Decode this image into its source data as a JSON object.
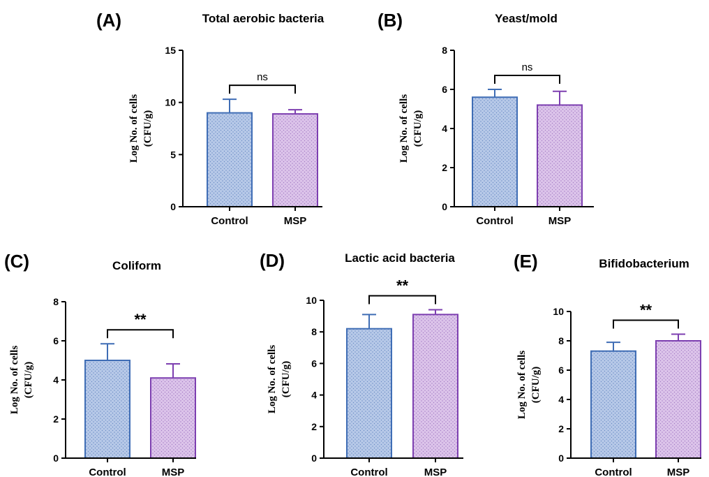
{
  "colors": {
    "control_fill": "#b7c9e8",
    "control_edge": "#3f6db5",
    "msp_fill": "#dcc4ea",
    "msp_edge": "#7d3fb0",
    "axis": "#000000"
  },
  "chart_data": [
    {
      "type": "bar",
      "panel_label": "(A)",
      "title": "Total aerobic bacteria",
      "ylabel_line1": "Log No. of cells",
      "ylabel_line2": "(CFU/g)",
      "categories": [
        "Control",
        "MSP"
      ],
      "values": [
        9.0,
        8.9
      ],
      "errors": [
        1.3,
        0.4
      ],
      "ylim": [
        0,
        15
      ],
      "yticks": [
        0,
        5,
        10,
        15
      ],
      "significance": "ns"
    },
    {
      "type": "bar",
      "panel_label": "(B)",
      "title": "Yeast/mold",
      "ylabel_line1": "Log No. of cells",
      "ylabel_line2": "(CFU/g)",
      "categories": [
        "Control",
        "MSP"
      ],
      "values": [
        5.6,
        5.2
      ],
      "errors": [
        0.4,
        0.7
      ],
      "ylim": [
        0,
        8
      ],
      "yticks": [
        0,
        2,
        4,
        6,
        8
      ],
      "significance": "ns"
    },
    {
      "type": "bar",
      "panel_label": "(C)",
      "title": "Coliform",
      "ylabel_line1": "Log No. of cells",
      "ylabel_line2": "(CFU/g)",
      "categories": [
        "Control",
        "MSP"
      ],
      "values": [
        5.0,
        4.1
      ],
      "errors": [
        0.85,
        0.72
      ],
      "ylim": [
        0,
        8
      ],
      "yticks": [
        0,
        2,
        4,
        6,
        8
      ],
      "significance": "**"
    },
    {
      "type": "bar",
      "panel_label": "(D)",
      "title": "Lactic acid bacteria",
      "ylabel_line1": "Log No. of cells",
      "ylabel_line2": "(CFU/g)",
      "categories": [
        "Control",
        "MSP"
      ],
      "values": [
        8.2,
        9.1
      ],
      "errors": [
        0.9,
        0.3
      ],
      "ylim": [
        0,
        10
      ],
      "yticks": [
        0,
        2,
        4,
        6,
        8,
        10
      ],
      "significance": "**"
    },
    {
      "type": "bar",
      "panel_label": "(E)",
      "title": "Bifidobacterium",
      "ylabel_line1": "Log No. of cells",
      "ylabel_line2": "(CFU/g)",
      "categories": [
        "Control",
        "MSP"
      ],
      "values": [
        7.3,
        8.0
      ],
      "errors": [
        0.6,
        0.45
      ],
      "ylim": [
        0,
        10
      ],
      "yticks": [
        0,
        2,
        4,
        6,
        8,
        10
      ],
      "significance": "**"
    }
  ]
}
